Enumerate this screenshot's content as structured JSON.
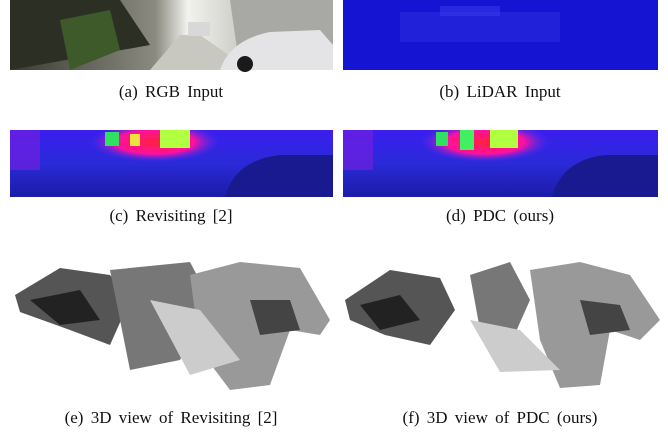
{
  "panels": [
    {
      "caption": "(a) RGB Input"
    },
    {
      "caption": "(b) LiDAR Input"
    },
    {
      "caption": "(c) Revisiting [2]"
    },
    {
      "caption": "(d) PDC (ours)"
    },
    {
      "caption": "(e) 3D view of Revisiting [2]"
    },
    {
      "caption": "(f) 3D view of PDC (ours)"
    }
  ]
}
